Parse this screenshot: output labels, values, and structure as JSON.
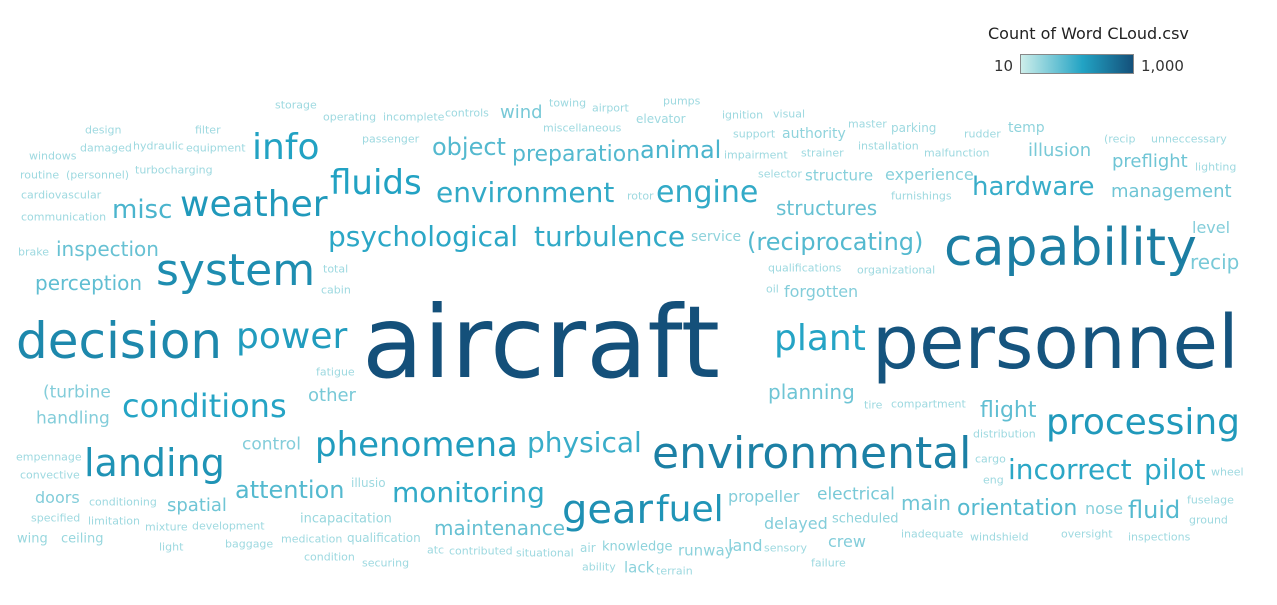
{
  "legend": {
    "title": "Count of Word CLoud.csv",
    "min_label": "10",
    "max_label": "1,000",
    "color_low": "#cdeeea",
    "color_high": "#14507a"
  },
  "chart_data": {
    "type": "wordcloud",
    "title": "",
    "color_scale": {
      "low": 10,
      "high": 1000,
      "low_color": "#cdeeea",
      "high_color": "#14507a"
    },
    "words": [
      {
        "text": "aircraft",
        "count": 1000
      },
      {
        "text": "personnel",
        "count": 900
      },
      {
        "text": "capability",
        "count": 320
      },
      {
        "text": "decision",
        "count": 250
      },
      {
        "text": "environmental",
        "count": 300
      },
      {
        "text": "system",
        "count": 220
      },
      {
        "text": "gear",
        "count": 200
      },
      {
        "text": "fuel",
        "count": 180
      },
      {
        "text": "landing",
        "count": 190
      },
      {
        "text": "processing",
        "count": 160
      },
      {
        "text": "weather",
        "count": 160
      },
      {
        "text": "power",
        "count": 150
      },
      {
        "text": "phenomena",
        "count": 150
      },
      {
        "text": "info",
        "count": 130
      },
      {
        "text": "fluids",
        "count": 130
      },
      {
        "text": "conditions",
        "count": 120
      },
      {
        "text": "plant",
        "count": 120
      },
      {
        "text": "incorrect",
        "count": 110
      },
      {
        "text": "pilot",
        "count": 110
      },
      {
        "text": "psychological",
        "count": 110
      },
      {
        "text": "turbulence",
        "count": 100
      },
      {
        "text": "environment",
        "count": 100
      },
      {
        "text": "engine",
        "count": 100
      },
      {
        "text": "monitoring",
        "count": 100
      },
      {
        "text": "hardware",
        "count": 90
      },
      {
        "text": "physical",
        "count": 90
      },
      {
        "text": "(reciprocating)",
        "count": 60
      },
      {
        "text": "animal",
        "count": 70
      },
      {
        "text": "misc",
        "count": 70
      },
      {
        "text": "object",
        "count": 60
      },
      {
        "text": "preparation",
        "count": 60
      },
      {
        "text": "attention",
        "count": 60
      },
      {
        "text": "orientation",
        "count": 60
      },
      {
        "text": "fluid",
        "count": 60
      },
      {
        "text": "flight",
        "count": 50
      },
      {
        "text": "perception",
        "count": 50
      },
      {
        "text": "inspection",
        "count": 45
      },
      {
        "text": "structures",
        "count": 45
      },
      {
        "text": "maintenance",
        "count": 45
      },
      {
        "text": "management",
        "count": 40
      },
      {
        "text": "planning",
        "count": 40
      },
      {
        "text": "preflight",
        "count": 40
      },
      {
        "text": "main",
        "count": 40
      },
      {
        "text": "spatial",
        "count": 40
      },
      {
        "text": "illusion",
        "count": 35
      },
      {
        "text": "recip",
        "count": 35
      },
      {
        "text": "wind",
        "count": 35
      },
      {
        "text": "electrical",
        "count": 35
      },
      {
        "text": "other",
        "count": 35
      },
      {
        "text": "(turbine",
        "count": 30
      },
      {
        "text": "handling",
        "count": 30
      },
      {
        "text": "propeller",
        "count": 30
      },
      {
        "text": "delayed",
        "count": 30
      },
      {
        "text": "crew",
        "count": 30
      },
      {
        "text": "forgotten",
        "count": 30
      },
      {
        "text": "doors",
        "count": 30
      },
      {
        "text": "control",
        "count": 30
      },
      {
        "text": "level",
        "count": 30
      },
      {
        "text": "experience",
        "count": 28
      },
      {
        "text": "structure",
        "count": 28
      },
      {
        "text": "nose",
        "count": 28
      },
      {
        "text": "land",
        "count": 28
      },
      {
        "text": "lack",
        "count": 26
      },
      {
        "text": "runway",
        "count": 26
      },
      {
        "text": "knowledge",
        "count": 25
      },
      {
        "text": "scheduled",
        "count": 25
      },
      {
        "text": "authority",
        "count": 25
      },
      {
        "text": "service",
        "count": 25
      },
      {
        "text": "temp",
        "count": 25
      },
      {
        "text": "ceiling",
        "count": 22
      },
      {
        "text": "wing",
        "count": 22
      },
      {
        "text": "incapacitation",
        "count": 22
      },
      {
        "text": "qualification",
        "count": 20
      },
      {
        "text": "medication",
        "count": 20
      },
      {
        "text": "baggage",
        "count": 20
      },
      {
        "text": "development",
        "count": 20
      },
      {
        "text": "mixture",
        "count": 20
      },
      {
        "text": "limitation",
        "count": 20
      },
      {
        "text": "specified",
        "count": 20
      },
      {
        "text": "conditioning",
        "count": 20
      },
      {
        "text": "convective",
        "count": 20
      },
      {
        "text": "empennage",
        "count": 20
      },
      {
        "text": "illusio",
        "count": 20
      },
      {
        "text": "fatigue",
        "count": 20
      },
      {
        "text": "brake",
        "count": 20
      },
      {
        "text": "communication",
        "count": 20
      },
      {
        "text": "cardiovascular",
        "count": 20
      },
      {
        "text": "routine",
        "count": 20
      },
      {
        "text": "(personnel)",
        "count": 20
      },
      {
        "text": "turbocharging",
        "count": 20
      },
      {
        "text": "windows",
        "count": 20
      },
      {
        "text": "damaged",
        "count": 20
      },
      {
        "text": "hydraulic",
        "count": 20
      },
      {
        "text": "equipment",
        "count": 20
      },
      {
        "text": "design",
        "count": 20
      },
      {
        "text": "filter",
        "count": 20
      },
      {
        "text": "storage",
        "count": 20
      },
      {
        "text": "operating",
        "count": 20
      },
      {
        "text": "incomplete",
        "count": 20
      },
      {
        "text": "controls",
        "count": 20
      },
      {
        "text": "passenger",
        "count": 20
      },
      {
        "text": "miscellaneous",
        "count": 20
      },
      {
        "text": "towing",
        "count": 20
      },
      {
        "text": "airport",
        "count": 20
      },
      {
        "text": "elevator",
        "count": 20
      },
      {
        "text": "pumps",
        "count": 20
      },
      {
        "text": "ignition",
        "count": 20
      },
      {
        "text": "visual",
        "count": 20
      },
      {
        "text": "support",
        "count": 20
      },
      {
        "text": "impairment",
        "count": 20
      },
      {
        "text": "strainer",
        "count": 20
      },
      {
        "text": "master",
        "count": 20
      },
      {
        "text": "parking",
        "count": 20
      },
      {
        "text": "installation",
        "count": 20
      },
      {
        "text": "malfunction",
        "count": 20
      },
      {
        "text": "rudder",
        "count": 20
      },
      {
        "text": "(recip",
        "count": 20
      },
      {
        "text": "unneccessary",
        "count": 20
      },
      {
        "text": "lighting",
        "count": 20
      },
      {
        "text": "selector",
        "count": 20
      },
      {
        "text": "furnishings",
        "count": 20
      },
      {
        "text": "rotor",
        "count": 20
      },
      {
        "text": "qualifications",
        "count": 20
      },
      {
        "text": "organizational",
        "count": 20
      },
      {
        "text": "total",
        "count": 20
      },
      {
        "text": "cabin",
        "count": 20
      },
      {
        "text": "oil",
        "count": 20
      },
      {
        "text": "tire",
        "count": 20
      },
      {
        "text": "compartment",
        "count": 20
      },
      {
        "text": "distribution",
        "count": 20
      },
      {
        "text": "cargo",
        "count": 20
      },
      {
        "text": "eng",
        "count": 20
      },
      {
        "text": "wheel",
        "count": 20
      },
      {
        "text": "fuselage",
        "count": 20
      },
      {
        "text": "ground",
        "count": 20
      },
      {
        "text": "oversight",
        "count": 20
      },
      {
        "text": "inspections",
        "count": 20
      },
      {
        "text": "windshield",
        "count": 20
      },
      {
        "text": "inadequate",
        "count": 20
      },
      {
        "text": "sensory",
        "count": 20
      },
      {
        "text": "failure",
        "count": 20
      },
      {
        "text": "terrain",
        "count": 20
      },
      {
        "text": "ability",
        "count": 20
      },
      {
        "text": "air",
        "count": 20
      },
      {
        "text": "situational",
        "count": 20
      },
      {
        "text": "contributed",
        "count": 20
      },
      {
        "text": "atc",
        "count": 20
      },
      {
        "text": "securing",
        "count": 20
      },
      {
        "text": "condition",
        "count": 20
      },
      {
        "text": "light",
        "count": 20
      }
    ]
  }
}
